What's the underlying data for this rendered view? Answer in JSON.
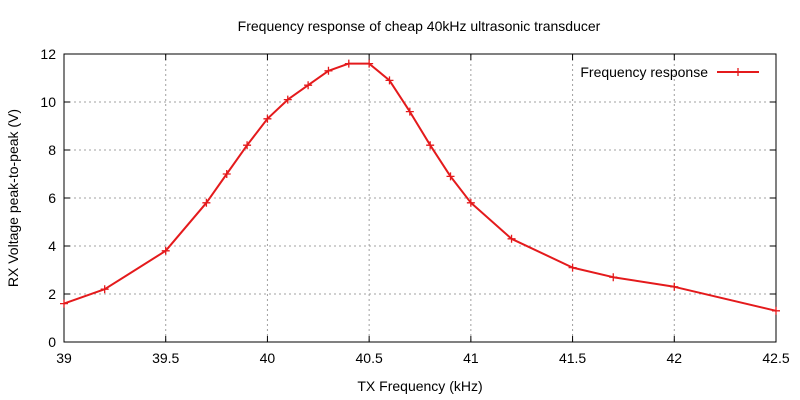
{
  "chart_data": {
    "type": "line",
    "title": "Frequency response of cheap 40kHz ultrasonic transducer",
    "xlabel": "TX Frequency (kHz)",
    "ylabel": "RX Voltage peak-to-peak (V)",
    "xlim": [
      39,
      42.5
    ],
    "ylim": [
      0,
      12
    ],
    "x_ticks": [
      "39",
      "39.5",
      "40",
      "40.5",
      "41",
      "41.5",
      "42",
      "42.5"
    ],
    "y_ticks": [
      "0",
      "2",
      "4",
      "6",
      "8",
      "10",
      "12"
    ],
    "grid": true,
    "legend_position": "top-right",
    "series": [
      {
        "name": "Frequency response",
        "color": "#e41a1c",
        "marker": "plus",
        "x": [
          39.0,
          39.2,
          39.5,
          39.7,
          39.8,
          39.9,
          40.0,
          40.1,
          40.2,
          40.3,
          40.4,
          40.5,
          40.6,
          40.7,
          40.8,
          40.9,
          41.0,
          41.2,
          41.5,
          41.7,
          42.0,
          42.5
        ],
        "y": [
          1.6,
          2.2,
          3.8,
          5.8,
          7.0,
          8.2,
          9.3,
          10.1,
          10.7,
          11.3,
          11.6,
          11.6,
          10.9,
          9.6,
          8.2,
          6.9,
          5.8,
          4.3,
          3.1,
          2.7,
          2.3,
          1.3
        ]
      }
    ]
  }
}
